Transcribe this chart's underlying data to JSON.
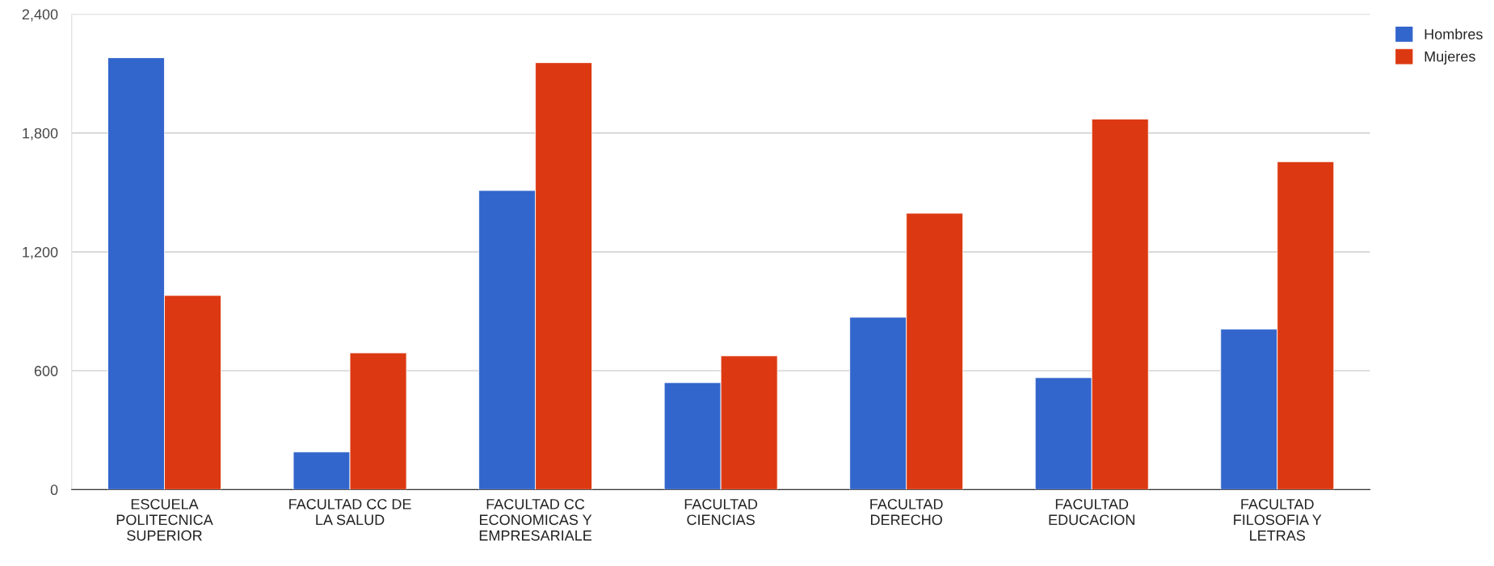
{
  "chart_data": {
    "type": "bar",
    "categories": [
      "ESCUELA\nPOLITECNICA\nSUPERIOR",
      "FACULTAD CC DE\nLA SALUD",
      "FACULTAD CC\nECONOMICAS Y\nEMPRESARIALE",
      "FACULTAD\nCIENCIAS",
      "FACULTAD\nDERECHO",
      "FACULTAD\nEDUCACION",
      "FACULTAD\nFILOSOFIA Y\nLETRAS"
    ],
    "series": [
      {
        "name": "Hombres",
        "color": "#3366cc",
        "values": [
          2180,
          190,
          1510,
          540,
          870,
          565,
          810
        ]
      },
      {
        "name": "Mujeres",
        "color": "#dc3912",
        "values": [
          980,
          690,
          2155,
          675,
          1395,
          1870,
          1655
        ]
      }
    ],
    "ylim": [
      0,
      2400
    ],
    "yticks": [
      0,
      {
        "value": 600,
        "label": "600"
      },
      {
        "value": 1200,
        "label": "1,200"
      },
      {
        "value": 1800,
        "label": "1,800"
      },
      {
        "value": 2400,
        "label": "2,400"
      }
    ],
    "grid": "y",
    "legend": "top right"
  }
}
